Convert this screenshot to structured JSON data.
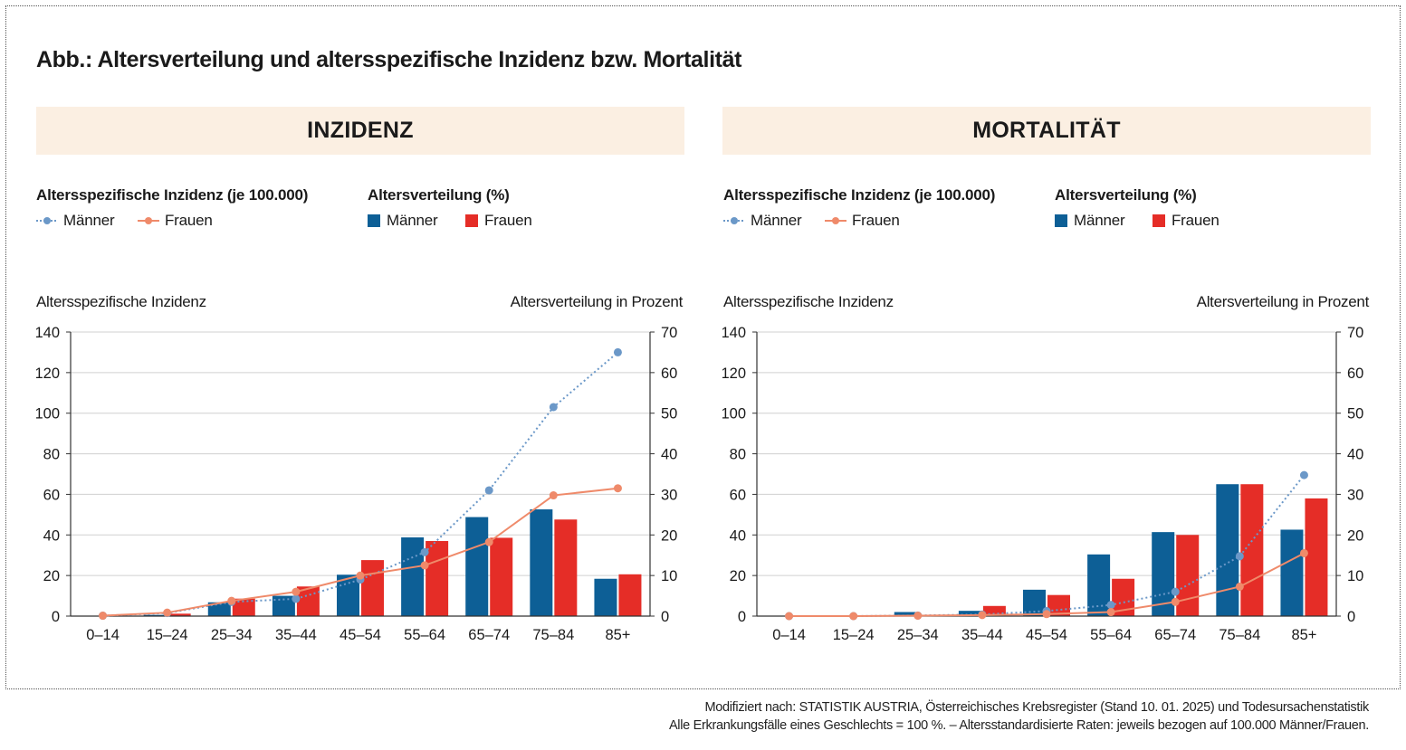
{
  "title": "Abb.: Altersverteilung und altersspezifische Inzidenz bzw. Mortalität",
  "legend": {
    "line_title": "Altersspezifische Inzidenz (je 100.000)",
    "bar_title": "Altersverteilung (%)",
    "men": "Männer",
    "women": "Frauen"
  },
  "colors": {
    "men_bar": "#0d5f96",
    "women_bar": "#e52d27",
    "men_line": "#6b98c8",
    "women_line": "#ef8a6a",
    "panel_header_bg": "#fbefe2"
  },
  "footnotes": [
    "Modifiziert nach: STATISTIK AUSTRIA, Österreichisches Krebsregister (Stand 10. 01. 2025) und Todesursachenstatistik",
    "Alle Erkrankungsfälle eines Geschlechts = 100 %. – Altersstandardisierte Raten: jeweils bezogen auf 100.000 Männer/Frauen."
  ],
  "chart_data": [
    {
      "panel_title": "INZIDENZ",
      "type": "bar",
      "combo": "bar+line",
      "ylabel_left": "Altersspezifische Inzidenz",
      "ylabel_right": "Altersverteilung in Prozent",
      "ylim_left": [
        0,
        140
      ],
      "ylim_right": [
        0,
        70
      ],
      "yticks_left": [
        "0",
        "20",
        "40",
        "60",
        "80",
        "100",
        "120",
        "140"
      ],
      "yticks_right": [
        "0",
        "10",
        "20",
        "30",
        "40",
        "50",
        "60",
        "70"
      ],
      "grid": true,
      "categories": [
        "0–14",
        "15–24",
        "25–34",
        "35–44",
        "45–54",
        "55–64",
        "65–74",
        "75–84",
        "85+"
      ],
      "series": [
        {
          "name": "Männer",
          "kind": "bar",
          "axis": "right",
          "values": [
            0,
            0.3,
            3.4,
            5.0,
            10.2,
            19.4,
            24.4,
            26.3,
            9.2
          ]
        },
        {
          "name": "Frauen",
          "kind": "bar",
          "axis": "right",
          "values": [
            0,
            0.6,
            4.3,
            7.3,
            13.8,
            18.5,
            19.3,
            23.8,
            10.3
          ]
        },
        {
          "name": "Männer",
          "kind": "line",
          "axis": "left",
          "style": "dotted",
          "values": [
            0.2,
            1.5,
            7.0,
            8.5,
            18.0,
            31.5,
            62.0,
            103.0,
            130.0
          ]
        },
        {
          "name": "Frauen",
          "kind": "line",
          "axis": "left",
          "style": "solid",
          "values": [
            0.2,
            1.7,
            7.5,
            12.0,
            20.0,
            25.0,
            36.5,
            59.5,
            63.0
          ]
        }
      ]
    },
    {
      "panel_title": "MORTALITÄT",
      "type": "bar",
      "combo": "bar+line",
      "ylabel_left": "Altersspezifische Inzidenz",
      "ylabel_right": "Altersverteilung in Prozent",
      "ylim_left": [
        0,
        140
      ],
      "ylim_right": [
        0,
        70
      ],
      "yticks_left": [
        "0",
        "20",
        "40",
        "60",
        "80",
        "100",
        "120",
        "140"
      ],
      "yticks_right": [
        "0",
        "10",
        "20",
        "30",
        "40",
        "50",
        "60",
        "70"
      ],
      "grid": true,
      "categories": [
        "0–14",
        "15–24",
        "25–34",
        "35–44",
        "45–54",
        "55–64",
        "65–74",
        "75–84",
        "85+"
      ],
      "series": [
        {
          "name": "Männer",
          "kind": "bar",
          "axis": "right",
          "values": [
            0,
            0,
            1.0,
            1.3,
            6.5,
            15.2,
            20.7,
            32.5,
            21.3
          ]
        },
        {
          "name": "Frauen",
          "kind": "bar",
          "axis": "right",
          "values": [
            0,
            0,
            0.3,
            2.5,
            5.2,
            9.2,
            20.0,
            32.5,
            29.0
          ]
        },
        {
          "name": "Männer",
          "kind": "line",
          "axis": "left",
          "style": "dotted",
          "values": [
            0,
            0,
            0.3,
            0.8,
            2.5,
            5.5,
            12.0,
            29.5,
            69.5
          ]
        },
        {
          "name": "Frauen",
          "kind": "line",
          "axis": "left",
          "style": "solid",
          "values": [
            0,
            0,
            0.2,
            0.5,
            1.0,
            2.0,
            7.0,
            14.5,
            31.0
          ]
        }
      ]
    }
  ]
}
